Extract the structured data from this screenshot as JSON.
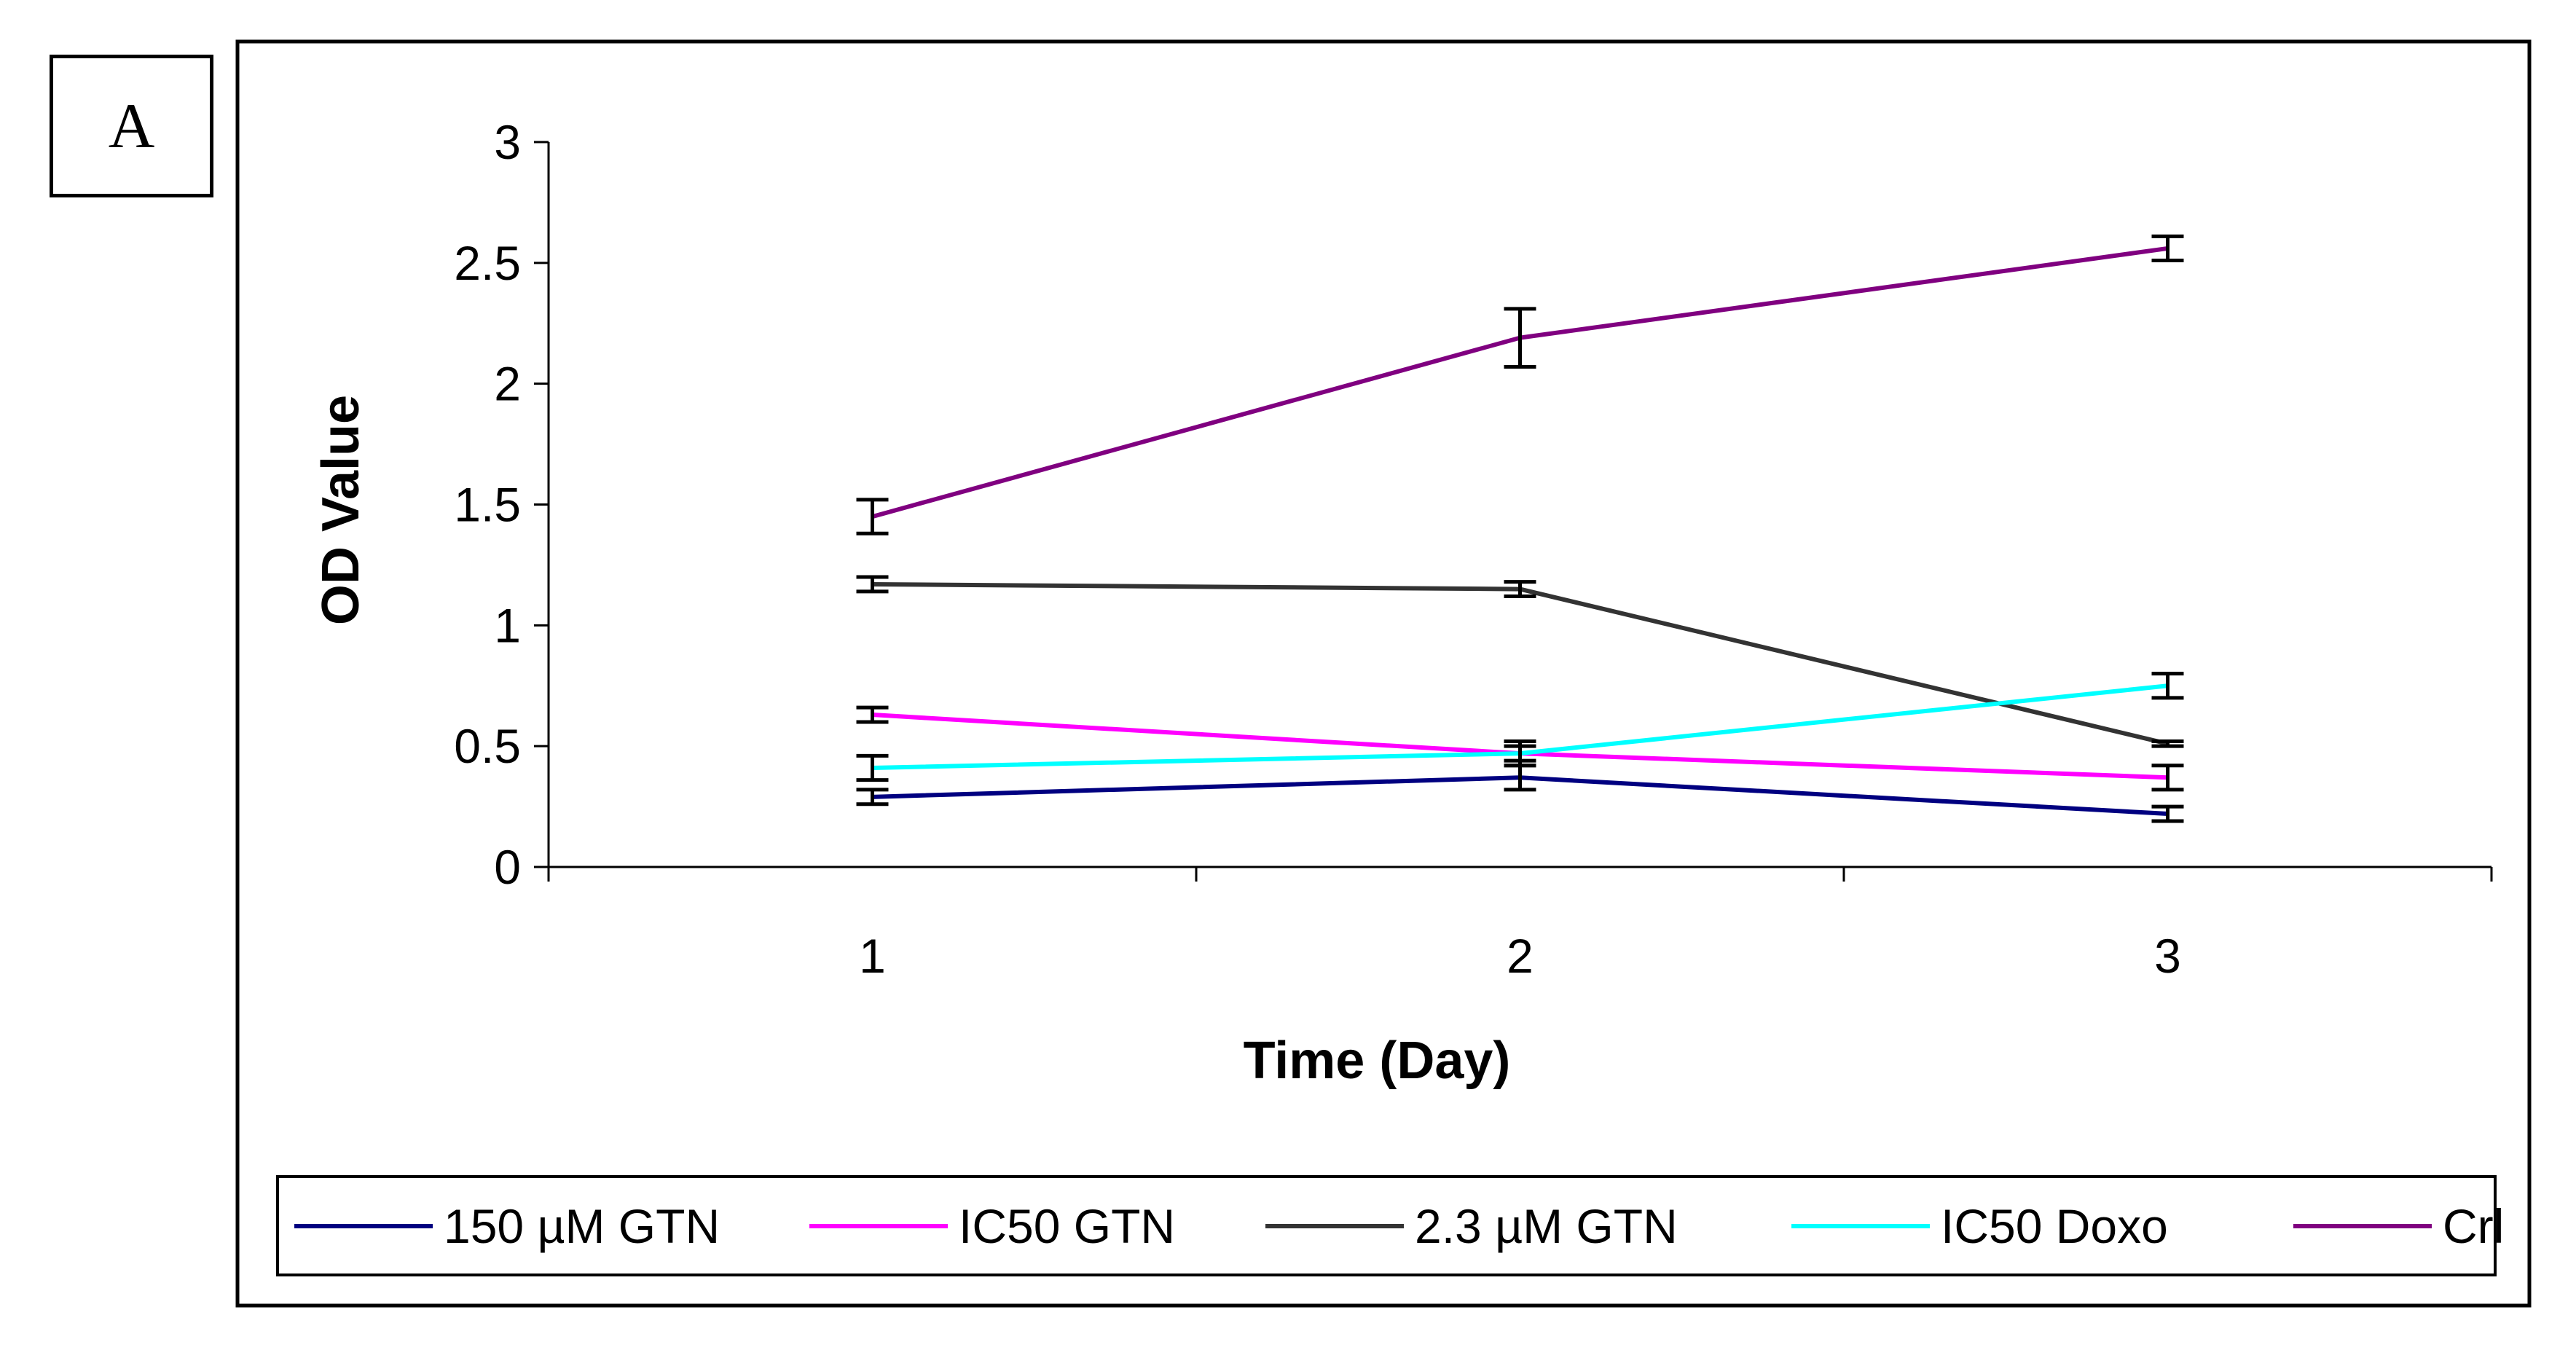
{
  "panel_label": "A",
  "chart_data": {
    "type": "line",
    "title": "",
    "xlabel": "Time (Day)",
    "ylabel": "OD Value",
    "categories": [
      "1",
      "2",
      "3"
    ],
    "ylim": [
      0,
      3
    ],
    "yticks": [
      "0",
      "0.5",
      "1",
      "1.5",
      "2",
      "2.5",
      "3"
    ],
    "grid": false,
    "legend_position": "bottom",
    "series": [
      {
        "name": "150 µM GTN",
        "color": "#000080",
        "values": [
          0.29,
          0.37,
          0.22
        ],
        "errors": [
          0.03,
          0.05,
          0.03
        ]
      },
      {
        "name": "IC50 GTN",
        "color": "#FF00FF",
        "values": [
          0.63,
          0.47,
          0.37
        ],
        "errors": [
          0.03,
          0.03,
          0.05
        ]
      },
      {
        "name": "2.3 µM GTN",
        "color": "#333333",
        "values": [
          1.17,
          1.15,
          0.51
        ],
        "errors": [
          0.03,
          0.03,
          0.01
        ]
      },
      {
        "name": "IC50 Doxo",
        "color": "#00FFFF",
        "values": [
          0.41,
          0.47,
          0.75
        ],
        "errors": [
          0.05,
          0.05,
          0.05
        ]
      },
      {
        "name": "Crl",
        "color": "#800080",
        "values": [
          1.45,
          2.19,
          2.56
        ],
        "errors": [
          0.07,
          0.12,
          0.05
        ]
      }
    ]
  }
}
